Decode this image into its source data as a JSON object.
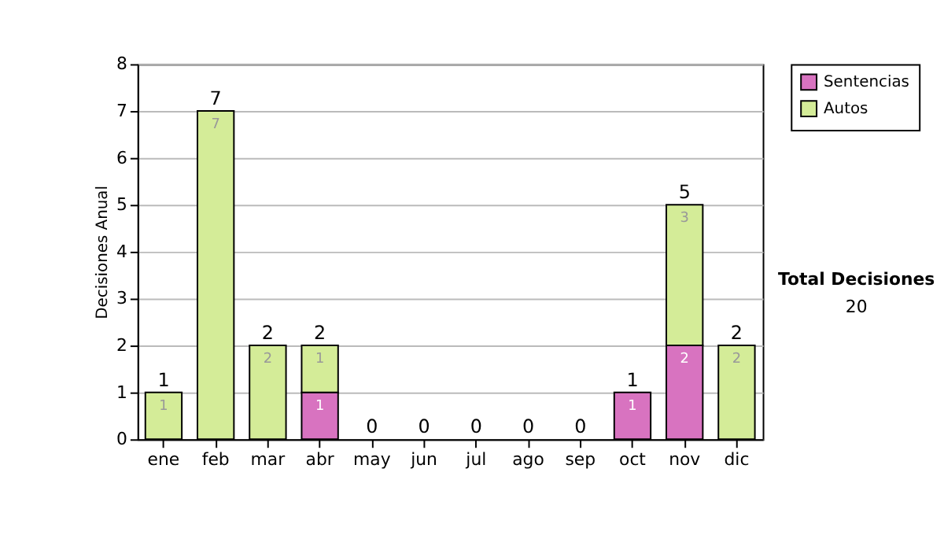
{
  "chart_data": {
    "type": "bar",
    "stacked": true,
    "ylabel": "Decisiones Anual",
    "categories": [
      "ene",
      "feb",
      "mar",
      "abr",
      "may",
      "jun",
      "jul",
      "ago",
      "sep",
      "oct",
      "nov",
      "dic"
    ],
    "series": [
      {
        "name": "Sentencias",
        "color": "#d873c0",
        "values": [
          0,
          0,
          0,
          1,
          0,
          0,
          0,
          0,
          0,
          1,
          2,
          0
        ],
        "value_labels": [
          null,
          null,
          null,
          "1",
          null,
          null,
          null,
          null,
          null,
          "1",
          "2",
          null
        ]
      },
      {
        "name": "Autos",
        "color": "#d4ec98",
        "values": [
          1,
          7,
          2,
          1,
          0,
          0,
          0,
          0,
          0,
          0,
          3,
          2
        ],
        "value_labels": [
          "1",
          "7",
          "2",
          "1",
          null,
          null,
          null,
          null,
          null,
          null,
          "3",
          "2"
        ]
      }
    ],
    "totals": [
      "1",
      "7",
      "2",
      "2",
      "0",
      "0",
      "0",
      "0",
      "0",
      "1",
      "5",
      "2"
    ],
    "ylim": [
      0,
      8
    ],
    "yticks": [
      0,
      1,
      2,
      3,
      4,
      5,
      6,
      7,
      8
    ],
    "grid": "y",
    "legend": "right",
    "annotations": [
      "Total Decisiones",
      "20"
    ]
  }
}
